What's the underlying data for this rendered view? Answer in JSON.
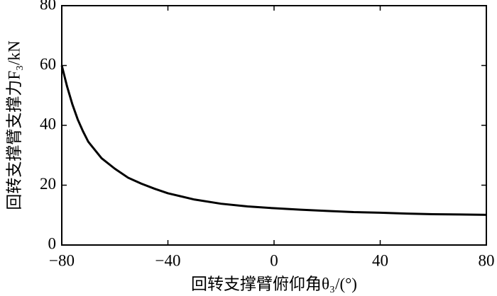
{
  "chart_data": {
    "type": "line",
    "xlabel": "回转支撑臂俯仰角θ₃/(°)",
    "ylabel": "回转支撑臂支撑力F₃/kN",
    "x": [
      -80,
      -78,
      -76,
      -74,
      -72,
      -70,
      -65,
      -60,
      -55,
      -50,
      -45,
      -40,
      -30,
      -20,
      -10,
      0,
      10,
      20,
      30,
      40,
      50,
      60,
      70,
      80
    ],
    "values": [
      60,
      53,
      47,
      42,
      38,
      34.5,
      29,
      25.5,
      22.5,
      20.5,
      18.8,
      17.3,
      15.2,
      13.8,
      12.9,
      12.3,
      11.8,
      11.4,
      11,
      10.8,
      10.5,
      10.3,
      10.2,
      10.1
    ],
    "color": "#000000",
    "xlim": [
      -80,
      80
    ],
    "xticks": [
      {
        "value": -80,
        "label": "−80"
      },
      {
        "value": -40,
        "label": "−40"
      },
      0,
      40,
      80
    ],
    "ylim": [
      0,
      80
    ],
    "yticks": [
      0,
      20,
      40,
      60,
      80
    ],
    "grid": false
  }
}
